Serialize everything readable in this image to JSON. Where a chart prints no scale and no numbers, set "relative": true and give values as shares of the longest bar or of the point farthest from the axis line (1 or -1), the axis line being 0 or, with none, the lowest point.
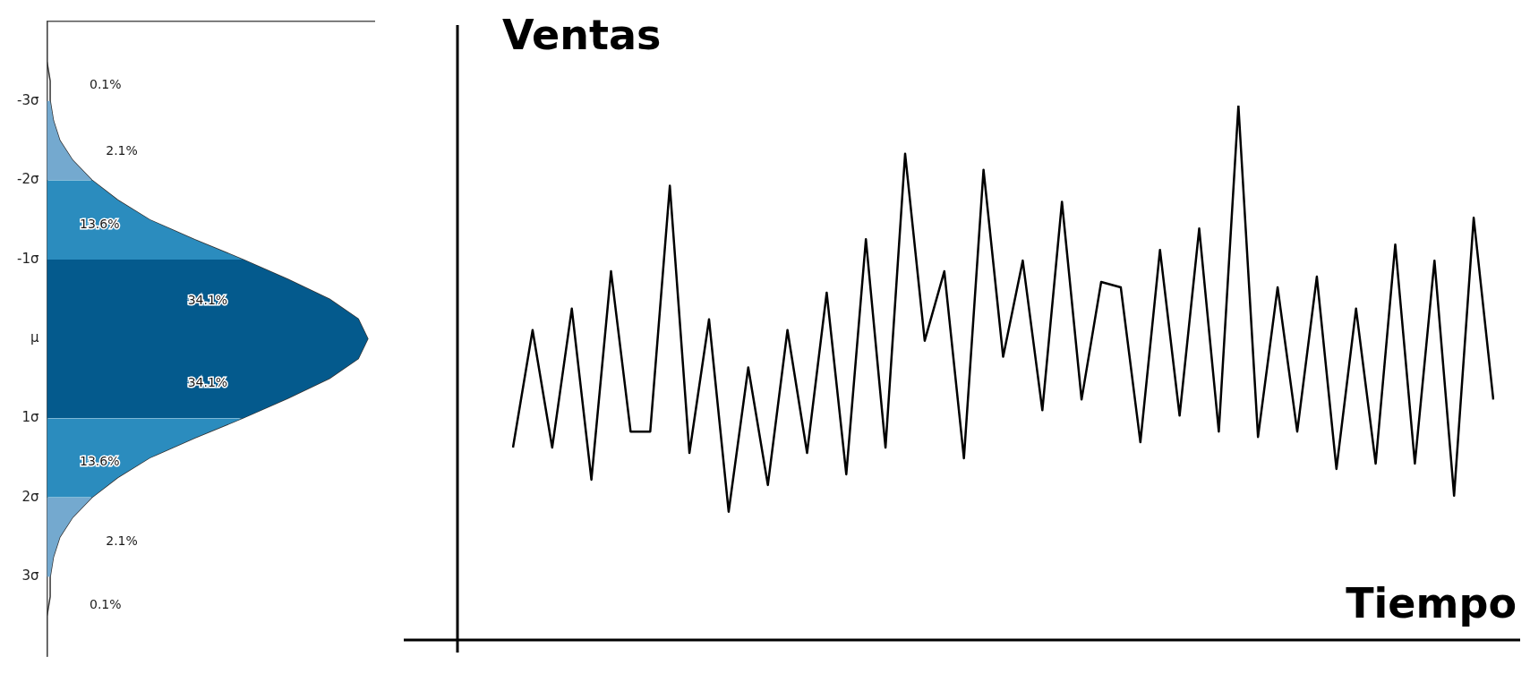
{
  "chart_data": [
    {
      "type": "area",
      "orientation": "horizontal",
      "relative": true,
      "ylim": [
        4,
        -4
      ],
      "yticks": [
        {
          "value": -3,
          "label": "-3σ"
        },
        {
          "value": -2,
          "label": "-2σ"
        },
        {
          "value": -1,
          "label": "-1σ"
        },
        {
          "value": 0,
          "label": "μ"
        },
        {
          "value": 1,
          "label": "1σ"
        },
        {
          "value": 2,
          "label": "2σ"
        },
        {
          "value": 3,
          "label": "3σ"
        }
      ],
      "series": [
        {
          "type": "area",
          "color": "#74a9cf",
          "x": [
            -3,
            -2.75,
            -2.5,
            -2.25,
            -2
          ],
          "values": [
            0.01,
            0.02,
            0.04,
            0.08,
            0.14
          ]
        },
        {
          "type": "area",
          "color": "#2b8cbe",
          "x": [
            -2,
            -1.75,
            -1.5,
            -1.25,
            -1
          ],
          "values": [
            0.14,
            0.22,
            0.32,
            0.46,
            0.61
          ]
        },
        {
          "type": "area",
          "color": "#045a8d",
          "x": [
            -1,
            -0.75,
            -0.5,
            -0.25,
            0,
            0.25,
            0.5,
            0.75,
            1
          ],
          "values": [
            0.61,
            0.75,
            0.88,
            0.97,
            1,
            0.97,
            0.88,
            0.75,
            0.61
          ]
        },
        {
          "type": "area",
          "color": "#2b8cbe",
          "x": [
            1,
            1.25,
            1.5,
            1.75,
            2
          ],
          "values": [
            0.61,
            0.46,
            0.32,
            0.22,
            0.14
          ]
        },
        {
          "type": "area",
          "color": "#74a9cf",
          "x": [
            2,
            2.25,
            2.5,
            2.75,
            3
          ],
          "values": [
            0.14,
            0.08,
            0.04,
            0.02,
            0.01
          ]
        },
        {
          "type": "line",
          "color": "#333333",
          "x": [
            -4,
            -3.5,
            -3.25,
            -3,
            -2.75,
            -2.5,
            -2.25,
            -2,
            -1.75,
            -1.5,
            -1.25,
            -1,
            -0.75,
            -0.5,
            -0.25,
            0,
            0.25,
            0.5,
            0.75,
            1,
            1.25,
            1.5,
            1.75,
            2,
            2.25,
            2.5,
            2.75,
            3,
            3.25,
            3.5,
            4
          ],
          "values": [
            0,
            0,
            0.01,
            0.01,
            0.02,
            0.04,
            0.08,
            0.14,
            0.22,
            0.32,
            0.46,
            0.61,
            0.75,
            0.88,
            0.97,
            1,
            0.97,
            0.88,
            0.75,
            0.61,
            0.46,
            0.32,
            0.22,
            0.14,
            0.08,
            0.04,
            0.02,
            0.01,
            0.01,
            0,
            0
          ]
        }
      ],
      "annotations": [
        "0.1%",
        "2.1%",
        "13.6%",
        "34.1%",
        "34.1%",
        "13.6%",
        "2.1%",
        "0.1%"
      ]
    },
    {
      "type": "line",
      "relative": true,
      "ylabel": "Ventas",
      "xlabel": "Tiempo",
      "color": "#000000",
      "categories": [
        null,
        null,
        null,
        null,
        null,
        null,
        null,
        null,
        null,
        null,
        null,
        null,
        null,
        null,
        null,
        null,
        null,
        null,
        null,
        null,
        null,
        null,
        null,
        null,
        null,
        null,
        null,
        null,
        null,
        null,
        null,
        null,
        null,
        null,
        null,
        null,
        null,
        null,
        null,
        null,
        null,
        null,
        null,
        null,
        null,
        null,
        null,
        null,
        null,
        null,
        null
      ],
      "values": [
        0.36,
        0.58,
        0.36,
        0.62,
        0.3,
        0.69,
        0.39,
        0.39,
        0.85,
        0.35,
        0.6,
        0.24,
        0.51,
        0.29,
        0.58,
        0.35,
        0.65,
        0.31,
        0.75,
        0.36,
        0.91,
        0.56,
        0.69,
        0.34,
        0.88,
        0.53,
        0.71,
        0.43,
        0.82,
        0.45,
        0.67,
        0.66,
        0.37,
        0.73,
        0.42,
        0.77,
        0.39,
        1,
        0.38,
        0.66,
        0.39,
        0.68,
        0.32,
        0.62,
        0.33,
        0.74,
        0.33,
        0.71,
        0.27,
        0.79,
        0.45
      ]
    }
  ]
}
